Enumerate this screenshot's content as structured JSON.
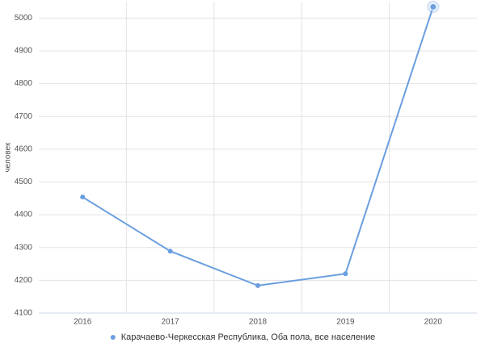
{
  "chart_data": {
    "type": "line",
    "y_label": "человек",
    "categories": [
      "2016",
      "2017",
      "2018",
      "2019",
      "2020"
    ],
    "series": [
      {
        "name": "Карачаево-Черкесская Республика, Оба пола, все население",
        "color": "#6a9ee0",
        "values": [
          4454,
          4289,
          4184,
          4220,
          5034
        ]
      }
    ],
    "ylim": [
      4100,
      5050
    ],
    "yticks": [
      4100,
      4200,
      4300,
      4400,
      4500,
      4600,
      4700,
      4800,
      4900,
      5000
    ],
    "grid": true
  }
}
